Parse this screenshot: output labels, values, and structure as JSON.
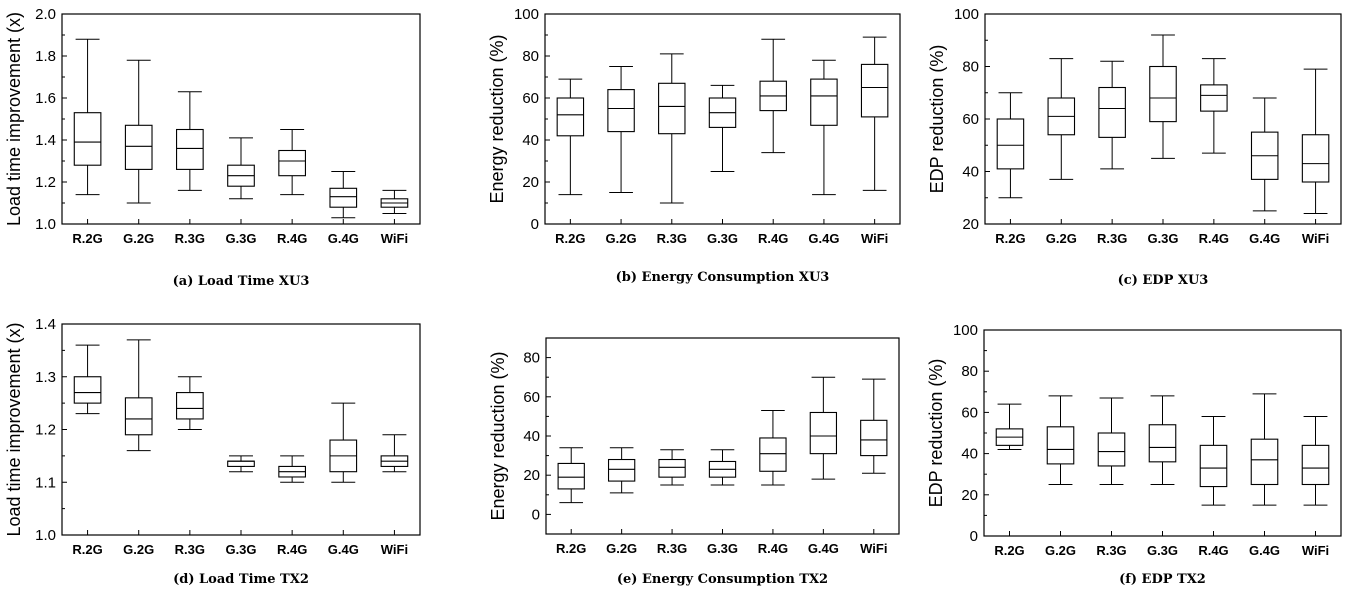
{
  "chart_data": [
    {
      "type": "box",
      "caption": "(a) Load Time XU3",
      "ylabel": "Load time improvement (x)",
      "categories": [
        "R.2G",
        "G.2G",
        "R.3G",
        "G.3G",
        "R.4G",
        "G.4G",
        "WiFi"
      ],
      "ylim": [
        1.0,
        2.0
      ],
      "yticks": [
        "1.0",
        "1.2",
        "1.4",
        "1.6",
        "1.8",
        "2.0"
      ],
      "boxes": [
        {
          "min": 1.14,
          "q1": 1.28,
          "median": 1.39,
          "q3": 1.53,
          "max": 1.88
        },
        {
          "min": 1.1,
          "q1": 1.26,
          "median": 1.37,
          "q3": 1.47,
          "max": 1.78
        },
        {
          "min": 1.16,
          "q1": 1.26,
          "median": 1.36,
          "q3": 1.45,
          "max": 1.63
        },
        {
          "min": 1.12,
          "q1": 1.18,
          "median": 1.23,
          "q3": 1.28,
          "max": 1.41
        },
        {
          "min": 1.14,
          "q1": 1.23,
          "median": 1.3,
          "q3": 1.35,
          "max": 1.45
        },
        {
          "min": 1.03,
          "q1": 1.08,
          "median": 1.13,
          "q3": 1.17,
          "max": 1.25
        },
        {
          "min": 1.05,
          "q1": 1.08,
          "median": 1.1,
          "q3": 1.12,
          "max": 1.16
        }
      ]
    },
    {
      "type": "box",
      "caption": "(b) Energy Consumption XU3",
      "ylabel": "Energy reduction (%)",
      "categories": [
        "R.2G",
        "G.2G",
        "R.3G",
        "G.3G",
        "R.4G",
        "G.4G",
        "WiFi"
      ],
      "ylim": [
        0,
        100
      ],
      "yticks": [
        "0",
        "20",
        "40",
        "60",
        "80",
        "100"
      ],
      "boxes": [
        {
          "min": 14,
          "q1": 42,
          "median": 52,
          "q3": 60,
          "max": 69
        },
        {
          "min": 15,
          "q1": 44,
          "median": 55,
          "q3": 64,
          "max": 75
        },
        {
          "min": 10,
          "q1": 43,
          "median": 56,
          "q3": 67,
          "max": 81
        },
        {
          "min": 25,
          "q1": 46,
          "median": 53,
          "q3": 60,
          "max": 66
        },
        {
          "min": 34,
          "q1": 54,
          "median": 61,
          "q3": 68,
          "max": 88
        },
        {
          "min": 14,
          "q1": 47,
          "median": 61,
          "q3": 69,
          "max": 78
        },
        {
          "min": 16,
          "q1": 51,
          "median": 65,
          "q3": 76,
          "max": 89
        }
      ]
    },
    {
      "type": "box",
      "caption": "(c) EDP XU3",
      "ylabel": "EDP reduction (%)",
      "categories": [
        "R.2G",
        "G.2G",
        "R.3G",
        "G.3G",
        "R.4G",
        "G.4G",
        "WiFi"
      ],
      "ylim": [
        20,
        100
      ],
      "yticks": [
        "20",
        "40",
        "60",
        "80",
        "100"
      ],
      "boxes": [
        {
          "min": 30,
          "q1": 41,
          "median": 50,
          "q3": 60,
          "max": 70
        },
        {
          "min": 37,
          "q1": 54,
          "median": 61,
          "q3": 68,
          "max": 83
        },
        {
          "min": 41,
          "q1": 53,
          "median": 64,
          "q3": 72,
          "max": 82
        },
        {
          "min": 45,
          "q1": 59,
          "median": 68,
          "q3": 80,
          "max": 92
        },
        {
          "min": 47,
          "q1": 63,
          "median": 69,
          "q3": 73,
          "max": 83
        },
        {
          "min": 25,
          "q1": 37,
          "median": 46,
          "q3": 55,
          "max": 68
        },
        {
          "min": 24,
          "q1": 36,
          "median": 43,
          "q3": 54,
          "max": 79
        }
      ]
    },
    {
      "type": "box",
      "caption": "(d) Load Time TX2",
      "ylabel": "Load time improvement (x)",
      "categories": [
        "R.2G",
        "G.2G",
        "R.3G",
        "G.3G",
        "R.4G",
        "G.4G",
        "WiFi"
      ],
      "ylim": [
        1.0,
        1.4
      ],
      "yticks": [
        "1.0",
        "1.1",
        "1.2",
        "1.3",
        "1.4"
      ],
      "boxes": [
        {
          "min": 1.23,
          "q1": 1.25,
          "median": 1.27,
          "q3": 1.3,
          "max": 1.36
        },
        {
          "min": 1.16,
          "q1": 1.19,
          "median": 1.22,
          "q3": 1.26,
          "max": 1.37
        },
        {
          "min": 1.2,
          "q1": 1.22,
          "median": 1.24,
          "q3": 1.27,
          "max": 1.3
        },
        {
          "min": 1.12,
          "q1": 1.13,
          "median": 1.14,
          "q3": 1.14,
          "max": 1.15
        },
        {
          "min": 1.1,
          "q1": 1.11,
          "median": 1.12,
          "q3": 1.13,
          "max": 1.15
        },
        {
          "min": 1.1,
          "q1": 1.12,
          "median": 1.15,
          "q3": 1.18,
          "max": 1.25
        },
        {
          "min": 1.12,
          "q1": 1.13,
          "median": 1.14,
          "q3": 1.15,
          "max": 1.19
        }
      ]
    },
    {
      "type": "box",
      "caption": "(e) Energy Consumption TX2",
      "ylabel": "Energy reduction (%)",
      "categories": [
        "R.2G",
        "G.2G",
        "R.3G",
        "G.3G",
        "R.4G",
        "G.4G",
        "WiFi"
      ],
      "ylim": [
        -10,
        90
      ],
      "yticks": [
        "0",
        "20",
        "40",
        "60",
        "80"
      ],
      "boxes": [
        {
          "min": 6,
          "q1": 13,
          "median": 19,
          "q3": 26,
          "max": 34
        },
        {
          "min": 11,
          "q1": 17,
          "median": 23,
          "q3": 28,
          "max": 34
        },
        {
          "min": 15,
          "q1": 19,
          "median": 24,
          "q3": 28,
          "max": 33
        },
        {
          "min": 15,
          "q1": 19,
          "median": 23,
          "q3": 27,
          "max": 33
        },
        {
          "min": 15,
          "q1": 22,
          "median": 31,
          "q3": 39,
          "max": 53
        },
        {
          "min": 18,
          "q1": 31,
          "median": 40,
          "q3": 52,
          "max": 70
        },
        {
          "min": 21,
          "q1": 30,
          "median": 38,
          "q3": 48,
          "max": 69
        }
      ]
    },
    {
      "type": "box",
      "caption": "(f) EDP TX2",
      "ylabel": "EDP reduction (%)",
      "categories": [
        "R.2G",
        "G.2G",
        "R.3G",
        "G.3G",
        "R.4G",
        "G.4G",
        "WiFi"
      ],
      "ylim": [
        0,
        100
      ],
      "yticks": [
        "0",
        "20",
        "40",
        "60",
        "80",
        "100"
      ],
      "boxes": [
        {
          "min": 42,
          "q1": 44,
          "median": 48,
          "q3": 52,
          "max": 64
        },
        {
          "min": 25,
          "q1": 35,
          "median": 42,
          "q3": 53,
          "max": 68
        },
        {
          "min": 25,
          "q1": 34,
          "median": 41,
          "q3": 50,
          "max": 67
        },
        {
          "min": 25,
          "q1": 36,
          "median": 43,
          "q3": 54,
          "max": 68
        },
        {
          "min": 15,
          "q1": 24,
          "median": 33,
          "q3": 44,
          "max": 58
        },
        {
          "min": 15,
          "q1": 25,
          "median": 37,
          "q3": 47,
          "max": 69
        },
        {
          "min": 15,
          "q1": 25,
          "median": 33,
          "q3": 44,
          "max": 58
        }
      ]
    }
  ]
}
